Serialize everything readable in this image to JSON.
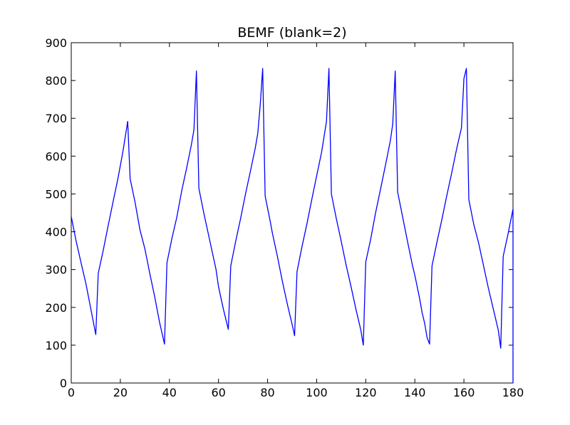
{
  "chart_data": {
    "type": "line",
    "title": "BEMF (blank=2)",
    "xlabel": "",
    "ylabel": "",
    "xlim": [
      0,
      180
    ],
    "ylim": [
      0,
      900
    ],
    "xticks": [
      0,
      20,
      40,
      60,
      80,
      100,
      120,
      140,
      160,
      180
    ],
    "yticks": [
      0,
      100,
      200,
      300,
      400,
      500,
      600,
      700,
      800,
      900
    ],
    "grid": false,
    "legend": "none",
    "series": [
      {
        "color": "#0000ff",
        "points": [
          [
            0,
            440
          ],
          [
            2,
            375
          ],
          [
            4,
            318
          ],
          [
            6,
            262
          ],
          [
            8,
            195
          ],
          [
            10,
            128
          ],
          [
            11,
            290
          ],
          [
            13,
            350
          ],
          [
            15,
            415
          ],
          [
            17,
            478
          ],
          [
            19,
            540
          ],
          [
            21,
            610
          ],
          [
            23,
            692
          ],
          [
            24,
            540
          ],
          [
            26,
            478
          ],
          [
            28,
            405
          ],
          [
            30,
            355
          ],
          [
            32,
            290
          ],
          [
            34,
            228
          ],
          [
            36,
            160
          ],
          [
            38,
            103
          ],
          [
            39,
            318
          ],
          [
            41,
            382
          ],
          [
            43,
            438
          ],
          [
            45,
            508
          ],
          [
            47,
            568
          ],
          [
            49,
            632
          ],
          [
            50,
            670
          ],
          [
            51,
            825
          ],
          [
            52,
            515
          ],
          [
            54,
            450
          ],
          [
            56,
            390
          ],
          [
            57,
            360
          ],
          [
            59,
            300
          ],
          [
            60,
            255
          ],
          [
            62,
            195
          ],
          [
            64,
            142
          ],
          [
            65,
            310
          ],
          [
            67,
            375
          ],
          [
            69,
            435
          ],
          [
            71,
            500
          ],
          [
            73,
            560
          ],
          [
            75,
            622
          ],
          [
            76,
            660
          ],
          [
            77,
            735
          ],
          [
            78,
            832
          ],
          [
            79,
            495
          ],
          [
            81,
            430
          ],
          [
            82,
            395
          ],
          [
            84,
            335
          ],
          [
            86,
            270
          ],
          [
            88,
            210
          ],
          [
            90,
            155
          ],
          [
            91,
            125
          ],
          [
            92,
            295
          ],
          [
            94,
            360
          ],
          [
            96,
            420
          ],
          [
            98,
            485
          ],
          [
            100,
            548
          ],
          [
            102,
            610
          ],
          [
            104,
            692
          ],
          [
            105,
            832
          ],
          [
            106,
            500
          ],
          [
            108,
            435
          ],
          [
            110,
            375
          ],
          [
            112,
            312
          ],
          [
            114,
            255
          ],
          [
            116,
            195
          ],
          [
            118,
            140
          ],
          [
            119,
            100
          ],
          [
            120,
            320
          ],
          [
            122,
            380
          ],
          [
            124,
            450
          ],
          [
            126,
            512
          ],
          [
            128,
            575
          ],
          [
            130,
            640
          ],
          [
            131,
            685
          ],
          [
            132,
            825
          ],
          [
            133,
            505
          ],
          [
            135,
            440
          ],
          [
            137,
            375
          ],
          [
            139,
            312
          ],
          [
            140,
            285
          ],
          [
            142,
            222
          ],
          [
            143,
            185
          ],
          [
            144,
            158
          ],
          [
            145,
            120
          ],
          [
            146,
            103
          ],
          [
            147,
            310
          ],
          [
            149,
            372
          ],
          [
            151,
            432
          ],
          [
            153,
            495
          ],
          [
            155,
            555
          ],
          [
            157,
            618
          ],
          [
            159,
            675
          ],
          [
            160,
            805
          ],
          [
            161,
            832
          ],
          [
            162,
            485
          ],
          [
            164,
            420
          ],
          [
            166,
            370
          ],
          [
            168,
            310
          ],
          [
            170,
            250
          ],
          [
            172,
            195
          ],
          [
            174,
            140
          ],
          [
            175,
            92
          ],
          [
            176,
            335
          ],
          [
            178,
            395
          ],
          [
            180,
            460
          ],
          [
            181,
            0
          ]
        ]
      }
    ]
  }
}
